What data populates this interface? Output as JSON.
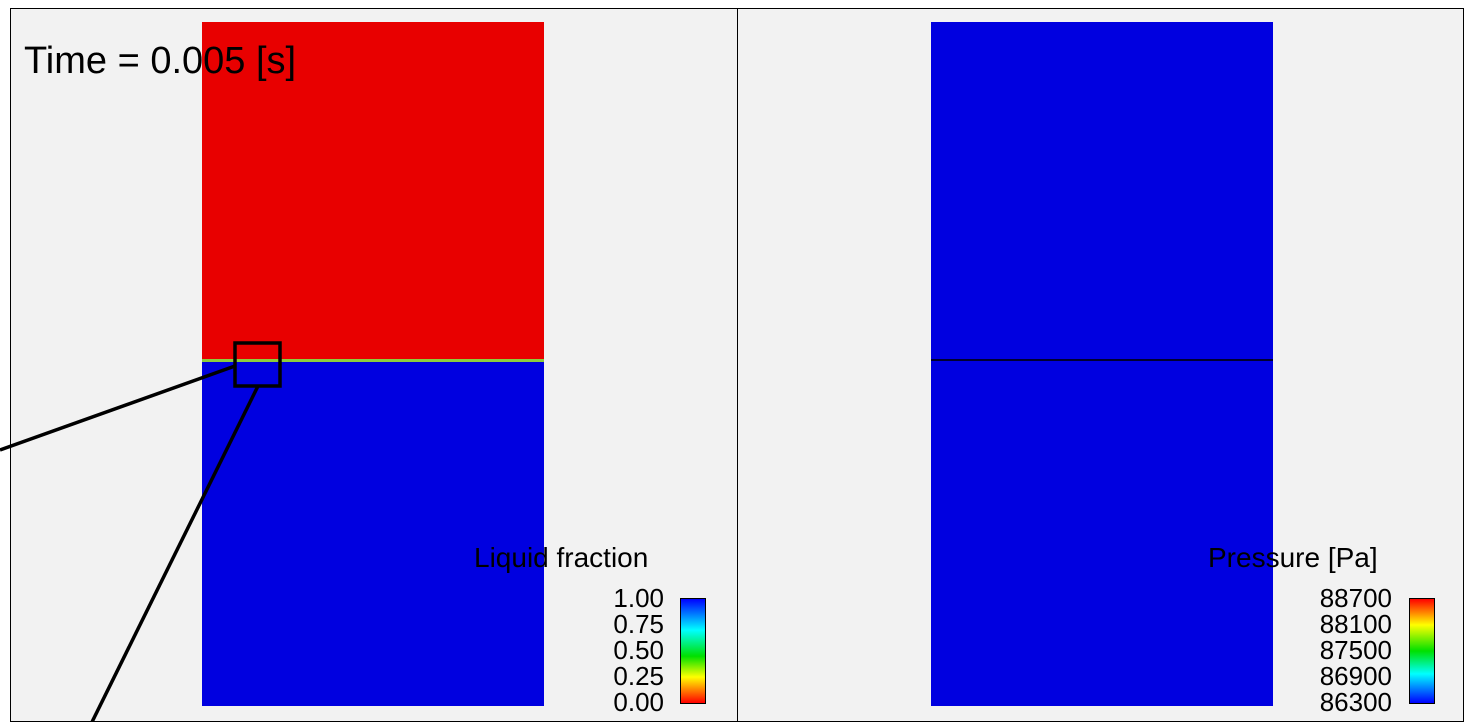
{
  "time_label": "Time = 0.005 [s]",
  "left_panel": {
    "legend_title": "Liquid fraction",
    "ticks": [
      "1.00",
      "0.75",
      "0.50",
      "0.25",
      "0.00"
    ],
    "colorbar_scale": "blue-cyan-green-yellow-red (1.00 at top, 0.00 at bottom)",
    "upper_region_color": "#e80000",
    "lower_region_color": "#0000e0",
    "interface_color": "#8ccc3c"
  },
  "right_panel": {
    "legend_title": "Pressure [Pa]",
    "ticks": [
      "88700",
      "88100",
      "87500",
      "86900",
      "86300"
    ],
    "colorbar_scale": "red-yellow-green-cyan-blue (88700 at top, 86300 at bottom)",
    "region_color": "#0000e0",
    "interface_color": "#000030"
  }
}
